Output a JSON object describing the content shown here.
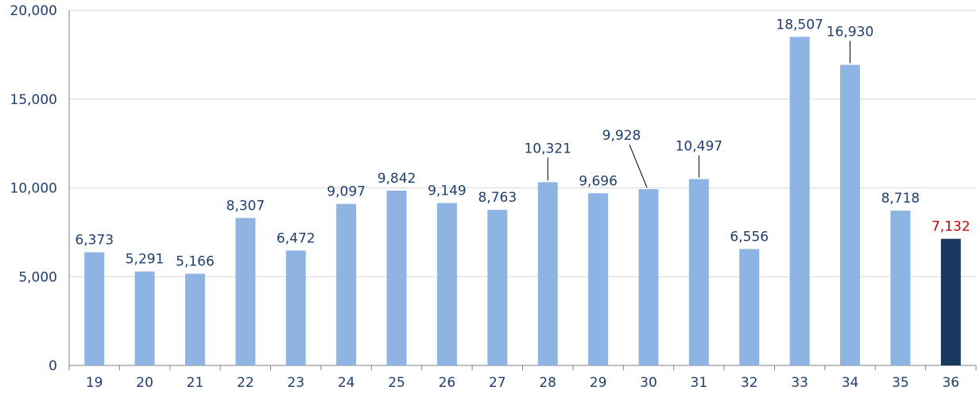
{
  "chart_data": {
    "type": "bar",
    "title": "",
    "xlabel": "",
    "ylabel": "",
    "categories": [
      "19",
      "20",
      "21",
      "22",
      "23",
      "24",
      "25",
      "26",
      "27",
      "28",
      "29",
      "30",
      "31",
      "32",
      "33",
      "34",
      "35",
      "36"
    ],
    "values": [
      6373,
      5291,
      5166,
      8307,
      6472,
      9097,
      9842,
      9149,
      8763,
      10321,
      9696,
      9928,
      10497,
      6556,
      18507,
      16930,
      8718,
      7132
    ],
    "data_labels": [
      "6,373",
      "5,291",
      "5,166",
      "8,307",
      "6,472",
      "9,097",
      "9,842",
      "9,149",
      "8,763",
      "10,321",
      "9,696",
      "9,928",
      "10,497",
      "6,556",
      "18,507",
      "16,930",
      "8,718",
      "7,132"
    ],
    "yticks": [
      0,
      5000,
      10000,
      15000,
      20000
    ],
    "ytick_labels": [
      "0",
      "5,000",
      "10,000",
      "15,000",
      "20,000"
    ],
    "ylim": [
      0,
      20000
    ],
    "grid": true,
    "legend": "none",
    "colors": {
      "bar": "#8eb4e3",
      "highlight_bar": "#17375e",
      "label": "#1f3f6e",
      "highlight_label": "#c00000",
      "grid": "#d9d9d9",
      "axis": "#808080"
    },
    "highlight_index": 17
  }
}
